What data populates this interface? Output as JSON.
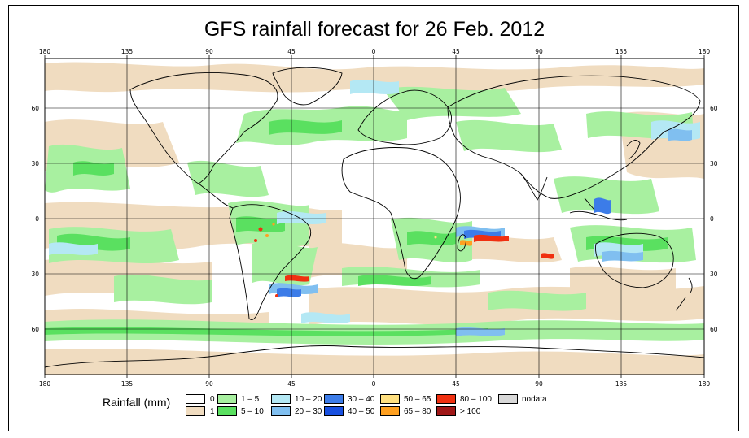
{
  "title": "GFS rainfall forecast for 26 Feb. 2012",
  "lon_ticks": [
    "180",
    "135",
    "90",
    "45",
    "0",
    "45",
    "90",
    "135",
    "180"
  ],
  "lat_ticks": [
    "60",
    "30",
    "0",
    "30",
    "60"
  ],
  "legend": {
    "title": "Rainfall (mm)",
    "entries": [
      {
        "label": "0",
        "color": "#ffffff"
      },
      {
        "label": "1",
        "color": "#f0dcc0"
      },
      {
        "label": "1 – 5",
        "color": "#a8f0a0"
      },
      {
        "label": "5 – 10",
        "color": "#5ae060"
      },
      {
        "label": "10 – 20",
        "color": "#b4e8f4"
      },
      {
        "label": "20 – 30",
        "color": "#80bff0"
      },
      {
        "label": "30 – 40",
        "color": "#3c7ce8"
      },
      {
        "label": "40 – 50",
        "color": "#1850e0"
      },
      {
        "label": "50 – 65",
        "color": "#ffe080"
      },
      {
        "label": "65 – 80",
        "color": "#ffa020"
      },
      {
        "label": "80 – 100",
        "color": "#f03010"
      },
      {
        "label": "> 100",
        "color": "#a01818"
      },
      {
        "label": "nodata",
        "color": "#d8d8d8"
      }
    ]
  },
  "colors": {
    "ocean_base": "#ffffff",
    "land_outline": "#000000",
    "grid": "#000000"
  }
}
